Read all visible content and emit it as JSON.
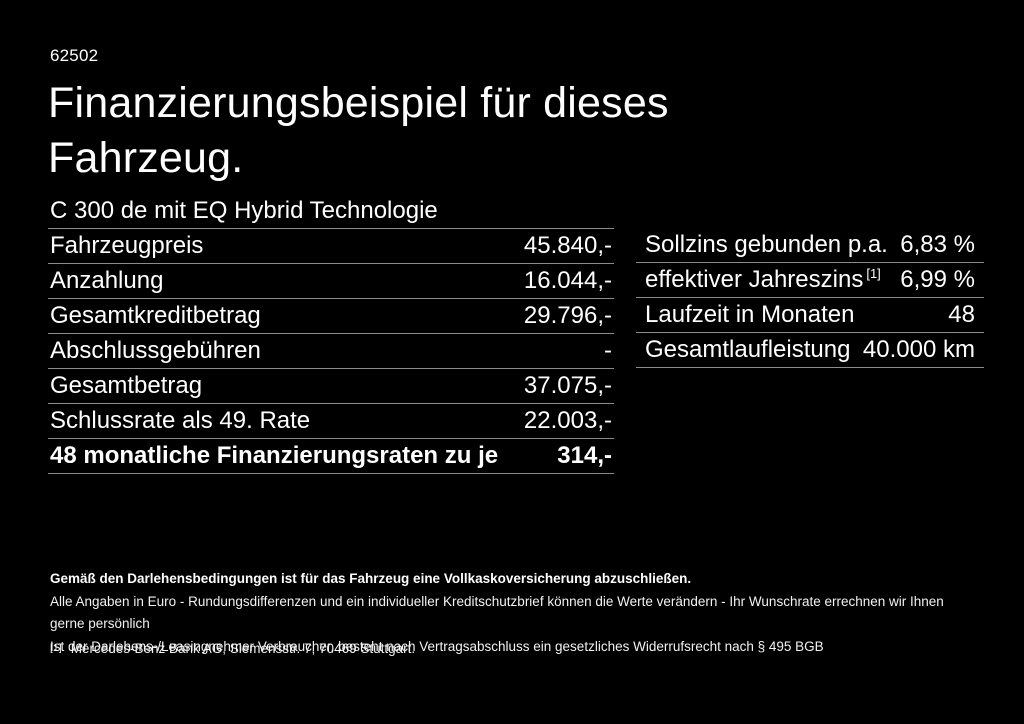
{
  "page": {
    "doc_number": "62502",
    "title": "Finanzierungsbeispiel für dieses Fahrzeug.",
    "subtitle": "C 300 de mit EQ Hybrid Technologie"
  },
  "colors": {
    "background": "#000000",
    "text": "#ffffff",
    "divider": "#8c8c8c"
  },
  "financing_table": {
    "rows": [
      {
        "label": "Fahrzeugpreis",
        "value": "45.840,-"
      },
      {
        "label": "Anzahlung",
        "value": "16.044,-"
      },
      {
        "label": "Gesamtkreditbetrag",
        "value": "29.796,-"
      },
      {
        "label": "Abschlussgebühren",
        "value": "-"
      },
      {
        "label": "Gesamtbetrag",
        "value": "37.075,-"
      },
      {
        "label": "Schlussrate als 49. Rate",
        "value": "22.003,-"
      },
      {
        "label": "48 monatliche Finanzierungsraten zu je",
        "value": "314,-"
      }
    ]
  },
  "conditions_table": {
    "rows": [
      {
        "label": "Sollzins gebunden p.a.",
        "sup": "",
        "value": "6,83 %"
      },
      {
        "label": "effektiver Jahreszins",
        "sup": "[1]",
        "value": "6,99 %"
      },
      {
        "label": "Laufzeit in Monaten",
        "sup": "",
        "value": "48"
      },
      {
        "label": "Gesamtlaufleistung",
        "sup": "",
        "value": "40.000 km"
      }
    ]
  },
  "footer": {
    "line1": "Gemäß den Darlehensbedingungen ist für das Fahrzeug eine Vollkaskoversicherung abzuschließen.",
    "line2": "Alle Angaben in Euro - Rundungsdifferenzen und ein individueller Kreditschutzbrief können die Werte verändern - Ihr Wunschrate errechnen wir Ihnen gerne persönlich",
    "line3": "Ist der Darlehens-/Leasingnehmer Verbraucher, besteht nach Vertragsabschluss ein gesetzliches Widerrufsrecht nach § 495 BGB",
    "footnote_marker": "[1]",
    "footnote_text": "Mercedes-Benz Bank AG, Siemensstr. 7, 70469 Stuttgart."
  }
}
